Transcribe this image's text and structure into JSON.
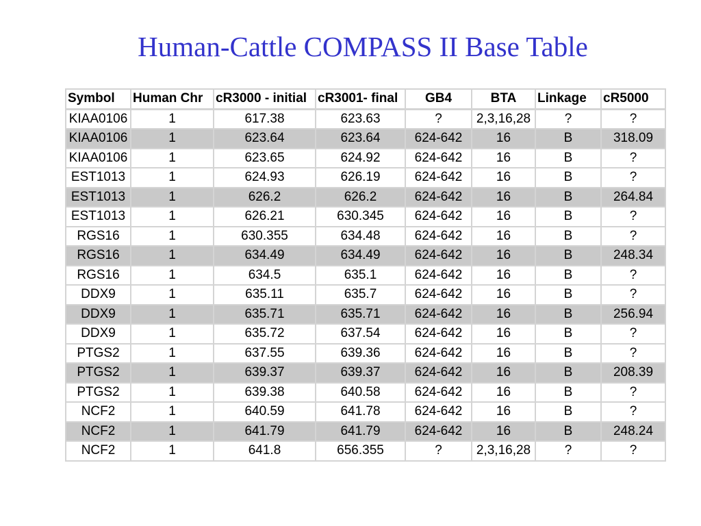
{
  "title": "Human-Cattle COMPASS II Base Table",
  "table": {
    "headers": [
      "Symbol",
      "Human Chr",
      "cR3000 - initial",
      "cR3001- final",
      "GB4",
      "BTA",
      "Linkage",
      "cR5000"
    ],
    "rows": [
      {
        "cells": [
          "KIAA0106",
          "1",
          "617.38",
          "623.63",
          "?",
          "2,3,16,28",
          "?",
          "?"
        ],
        "shaded": false
      },
      {
        "cells": [
          "KIAA0106",
          "1",
          "623.64",
          "623.64",
          "624-642",
          "16",
          "B",
          "318.09"
        ],
        "shaded": true
      },
      {
        "cells": [
          "KIAA0106",
          "1",
          "623.65",
          "624.92",
          "624-642",
          "16",
          "B",
          "?"
        ],
        "shaded": false
      },
      {
        "cells": [
          "EST1013",
          "1",
          "624.93",
          "626.19",
          "624-642",
          "16",
          "B",
          "?"
        ],
        "shaded": false
      },
      {
        "cells": [
          "EST1013",
          "1",
          "626.2",
          "626.2",
          "624-642",
          "16",
          "B",
          "264.84"
        ],
        "shaded": true
      },
      {
        "cells": [
          "EST1013",
          "1",
          "626.21",
          "630.345",
          "624-642",
          "16",
          "B",
          "?"
        ],
        "shaded": false
      },
      {
        "cells": [
          "RGS16",
          "1",
          "630.355",
          "634.48",
          "624-642",
          "16",
          "B",
          "?"
        ],
        "shaded": false
      },
      {
        "cells": [
          "RGS16",
          "1",
          "634.49",
          "634.49",
          "624-642",
          "16",
          "B",
          "248.34"
        ],
        "shaded": true
      },
      {
        "cells": [
          "RGS16",
          "1",
          "634.5",
          "635.1",
          "624-642",
          "16",
          "B",
          "?"
        ],
        "shaded": false
      },
      {
        "cells": [
          "DDX9",
          "1",
          "635.11",
          "635.7",
          "624-642",
          "16",
          "B",
          "?"
        ],
        "shaded": false
      },
      {
        "cells": [
          "DDX9",
          "1",
          "635.71",
          "635.71",
          "624-642",
          "16",
          "B",
          "256.94"
        ],
        "shaded": true
      },
      {
        "cells": [
          "DDX9",
          "1",
          "635.72",
          "637.54",
          "624-642",
          "16",
          "B",
          "?"
        ],
        "shaded": false
      },
      {
        "cells": [
          "PTGS2",
          "1",
          "637.55",
          "639.36",
          "624-642",
          "16",
          "B",
          "?"
        ],
        "shaded": false
      },
      {
        "cells": [
          "PTGS2",
          "1",
          "639.37",
          "639.37",
          "624-642",
          "16",
          "B",
          "208.39"
        ],
        "shaded": true
      },
      {
        "cells": [
          "PTGS2",
          "1",
          "639.38",
          "640.58",
          "624-642",
          "16",
          "B",
          "?"
        ],
        "shaded": false
      },
      {
        "cells": [
          "NCF2",
          "1",
          "640.59",
          "641.78",
          "624-642",
          "16",
          "B",
          "?"
        ],
        "shaded": false
      },
      {
        "cells": [
          "NCF2",
          "1",
          "641.79",
          "641.79",
          "624-642",
          "16",
          "B",
          "248.24"
        ],
        "shaded": true
      },
      {
        "cells": [
          "NCF2",
          "1",
          "641.8",
          "656.355",
          "?",
          "2,3,16,28",
          "?",
          "?"
        ],
        "shaded": false
      }
    ]
  }
}
